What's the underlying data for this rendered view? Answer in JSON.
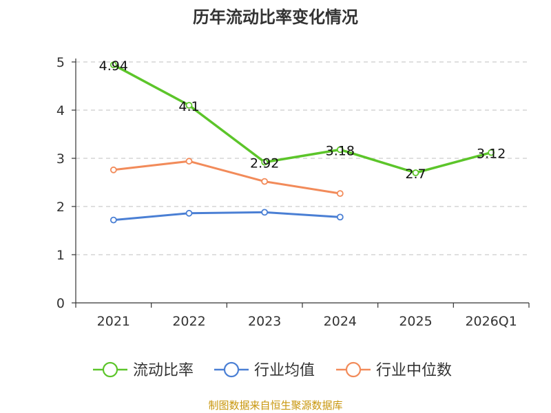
{
  "chart_data": {
    "type": "line",
    "title": "历年流动比率变化情况",
    "categories": [
      "2021",
      "2022",
      "2023",
      "2024",
      "2025",
      "2026Q1"
    ],
    "yticks": [
      "0",
      "1",
      "2",
      "3",
      "4",
      "5"
    ],
    "ylim": [
      0,
      5
    ],
    "grid": true,
    "legend_position": "bottom",
    "series": [
      {
        "key": "ratio",
        "name": "流动比率",
        "color": "#5cc52a",
        "values": [
          4.94,
          4.1,
          2.92,
          3.18,
          2.7,
          3.12
        ],
        "labels": [
          "4.94",
          "4.1",
          "2.92",
          "3.18",
          "2.7",
          "3.12"
        ]
      },
      {
        "key": "industry-avg",
        "name": "行业均值",
        "color": "#4a7fd4",
        "values": [
          1.72,
          1.86,
          1.88,
          1.78,
          null,
          null
        ]
      },
      {
        "key": "industry-median",
        "name": "行业中位数",
        "color": "#f28b5a",
        "values": [
          2.76,
          2.94,
          2.52,
          2.27,
          null,
          null
        ]
      }
    ]
  },
  "source": {
    "text": "制图数据来自恒生聚源数据库",
    "color": "#c8960c"
  }
}
